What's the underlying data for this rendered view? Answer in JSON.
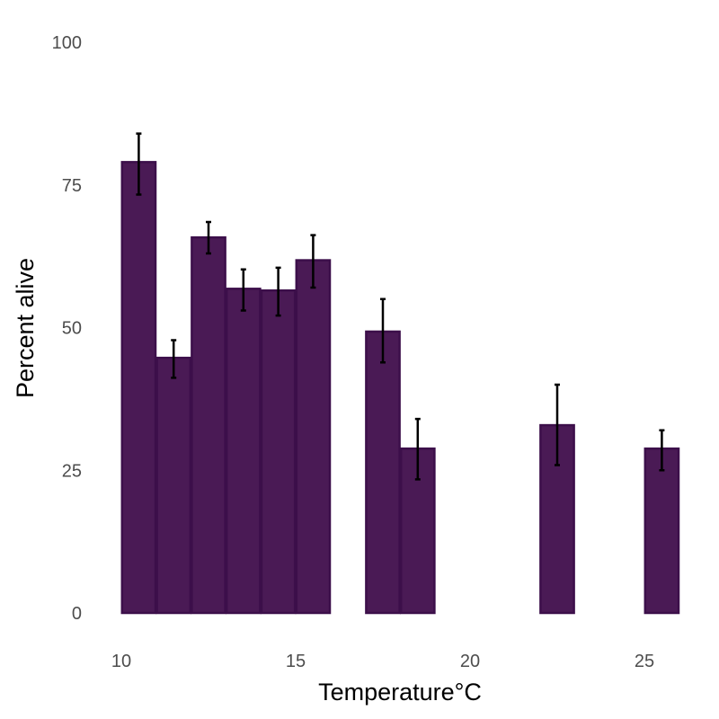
{
  "chart_data": {
    "type": "bar",
    "xlabel": "Temperature°C",
    "ylabel": "Percent alive",
    "xlim": [
      10,
      26
    ],
    "ylim": [
      0,
      100
    ],
    "x_ticks": [
      10,
      15,
      20,
      25
    ],
    "y_ticks": [
      0,
      25,
      50,
      75,
      100
    ],
    "bar_width": 1,
    "grid": false,
    "bar_color": "#4a1a55",
    "bar_edge_color": "#3c0f4a",
    "error_bar_color": "#000000",
    "bars": [
      {
        "x": 10.5,
        "value": 79,
        "err_low": 73.3,
        "err_high": 84.0
      },
      {
        "x": 11.5,
        "value": 44.7,
        "err_low": 41.2,
        "err_high": 47.8
      },
      {
        "x": 12.5,
        "value": 65.8,
        "err_low": 63.0,
        "err_high": 68.5
      },
      {
        "x": 13.5,
        "value": 56.8,
        "err_low": 53.0,
        "err_high": 60.2
      },
      {
        "x": 14.5,
        "value": 56.5,
        "err_low": 52.1,
        "err_high": 60.5
      },
      {
        "x": 15.5,
        "value": 61.8,
        "err_low": 57.0,
        "err_high": 66.2
      },
      {
        "x": 17.5,
        "value": 49.3,
        "err_low": 43.9,
        "err_high": 55.0
      },
      {
        "x": 18.5,
        "value": 28.8,
        "err_low": 23.4,
        "err_high": 34.0
      },
      {
        "x": 22.5,
        "value": 32.9,
        "err_low": 25.9,
        "err_high": 40.0
      },
      {
        "x": 25.5,
        "value": 28.8,
        "err_low": 25.0,
        "err_high": 32.0
      }
    ]
  }
}
